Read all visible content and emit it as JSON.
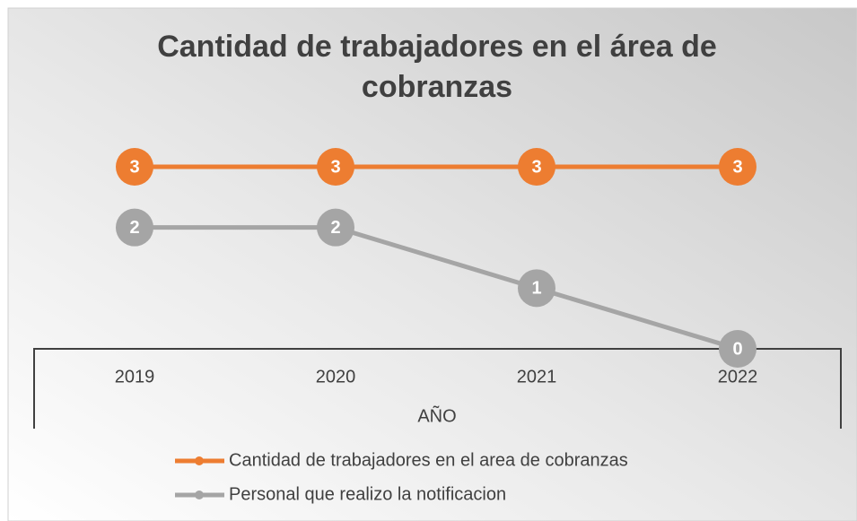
{
  "chart_data": {
    "type": "line",
    "title": "Cantidad de trabajadores en el área de cobranzas",
    "x_label": "AÑO",
    "categories": [
      "2019",
      "2020",
      "2021",
      "2022"
    ],
    "series": [
      {
        "name": "Cantidad de trabajadores en el area de cobranzas",
        "color": "#ed7d31",
        "values": [
          3,
          3,
          3,
          3
        ]
      },
      {
        "name": "Personal que realizo la notificacion",
        "color": "#a5a5a5",
        "values": [
          2,
          2,
          1,
          0
        ]
      }
    ],
    "ylim": [
      0,
      3
    ],
    "data_labels": true,
    "legend": "bottom"
  }
}
